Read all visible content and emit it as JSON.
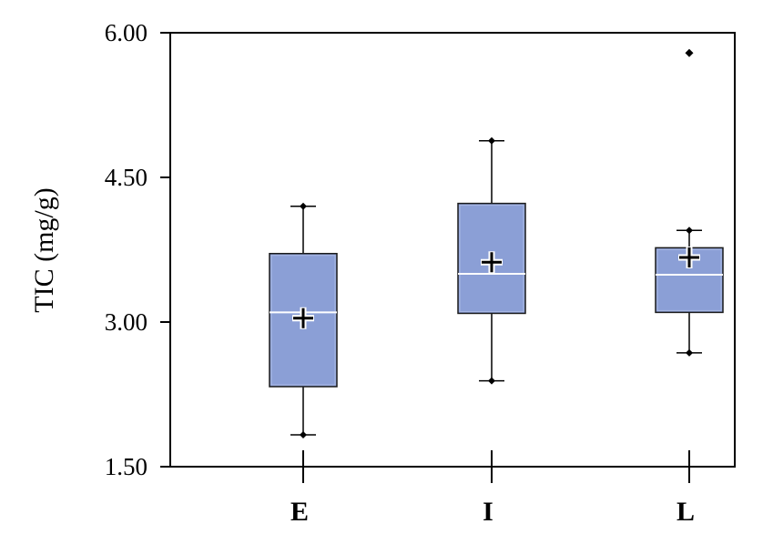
{
  "chart_data": {
    "type": "box",
    "ylabel": "TIC (mg/g)",
    "ylim": [
      1.5,
      6.0
    ],
    "yticks": [
      "1.50",
      "3.00",
      "4.50",
      "6.00"
    ],
    "categories": [
      "E",
      "I",
      "L"
    ],
    "boxes": [
      {
        "category": "E",
        "min": 1.83,
        "q1": 2.33,
        "median": 3.1,
        "q3": 3.71,
        "max": 4.2,
        "mean": 3.04,
        "outliers": []
      },
      {
        "category": "I",
        "min": 2.39,
        "q1": 3.09,
        "median": 3.5,
        "q3": 4.23,
        "max": 4.88,
        "mean": 3.62,
        "outliers": []
      },
      {
        "category": "L",
        "min": 2.68,
        "q1": 3.1,
        "median": 3.49,
        "q3": 3.77,
        "max": 3.95,
        "mean": 3.67,
        "outliers": [
          5.79
        ]
      }
    ],
    "box_color": "#8b9fd6",
    "legend": "none",
    "grid": false
  }
}
